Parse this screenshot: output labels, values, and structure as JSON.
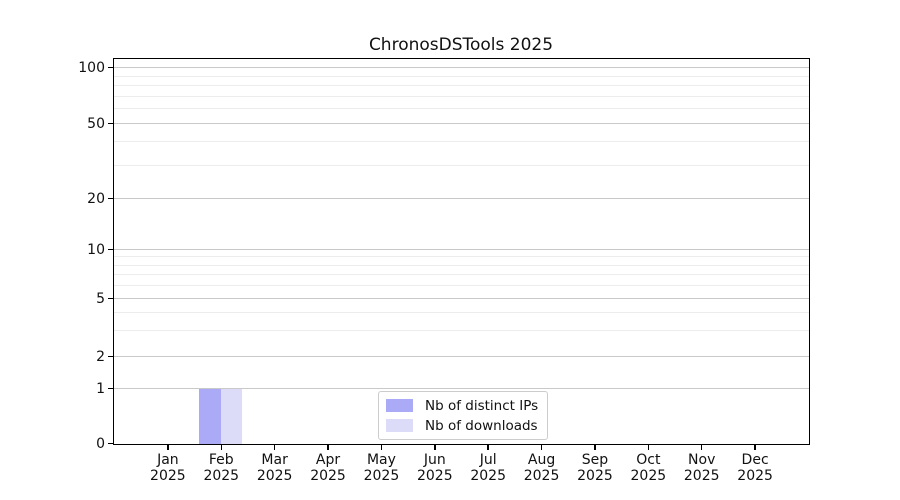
{
  "title": "ChronosDSTools 2025",
  "chart_data": {
    "type": "bar",
    "categories": [
      "Jan 2025",
      "Feb 2025",
      "Mar 2025",
      "Apr 2025",
      "May 2025",
      "Jun 2025",
      "Jul 2025",
      "Aug 2025",
      "Sep 2025",
      "Oct 2025",
      "Nov 2025",
      "Dec 2025"
    ],
    "x_tick_months": [
      "Jan",
      "Feb",
      "Mar",
      "Apr",
      "May",
      "Jun",
      "Jul",
      "Aug",
      "Sep",
      "Oct",
      "Nov",
      "Dec"
    ],
    "x_tick_year": "2025",
    "series": [
      {
        "name": "Nb of distinct IPs",
        "color": "#aaaaf7",
        "values": [
          0,
          1,
          0,
          0,
          0,
          0,
          0,
          0,
          0,
          0,
          0,
          0
        ]
      },
      {
        "name": "Nb of downloads",
        "color": "#dcdcf9",
        "values": [
          0,
          1,
          0,
          0,
          0,
          0,
          0,
          0,
          0,
          0,
          0,
          0
        ]
      }
    ],
    "title": "ChronosDSTools 2025",
    "xlabel": "",
    "ylabel": "",
    "y_axis": {
      "scale": "symlog",
      "major_ticks": [
        0,
        1,
        2,
        5,
        10,
        20,
        50,
        100
      ],
      "minor_gridlines": [
        3,
        4,
        6,
        7,
        8,
        9,
        30,
        40,
        60,
        70,
        80,
        90
      ],
      "ylim": [
        0,
        110
      ]
    },
    "grid": true,
    "legend_position": "lower center"
  },
  "legend": {
    "entries": [
      {
        "label": "Nb of distinct IPs",
        "color": "#aaaaf7"
      },
      {
        "label": "Nb of downloads",
        "color": "#dcdcf9"
      }
    ]
  },
  "colors": {
    "bar_distinct_ips": "#aaaaf7",
    "bar_downloads": "#dcdcf9",
    "grid_major": "#c9c9c9",
    "grid_minor": "#ececec",
    "spine": "#000000",
    "background": "#ffffff"
  }
}
